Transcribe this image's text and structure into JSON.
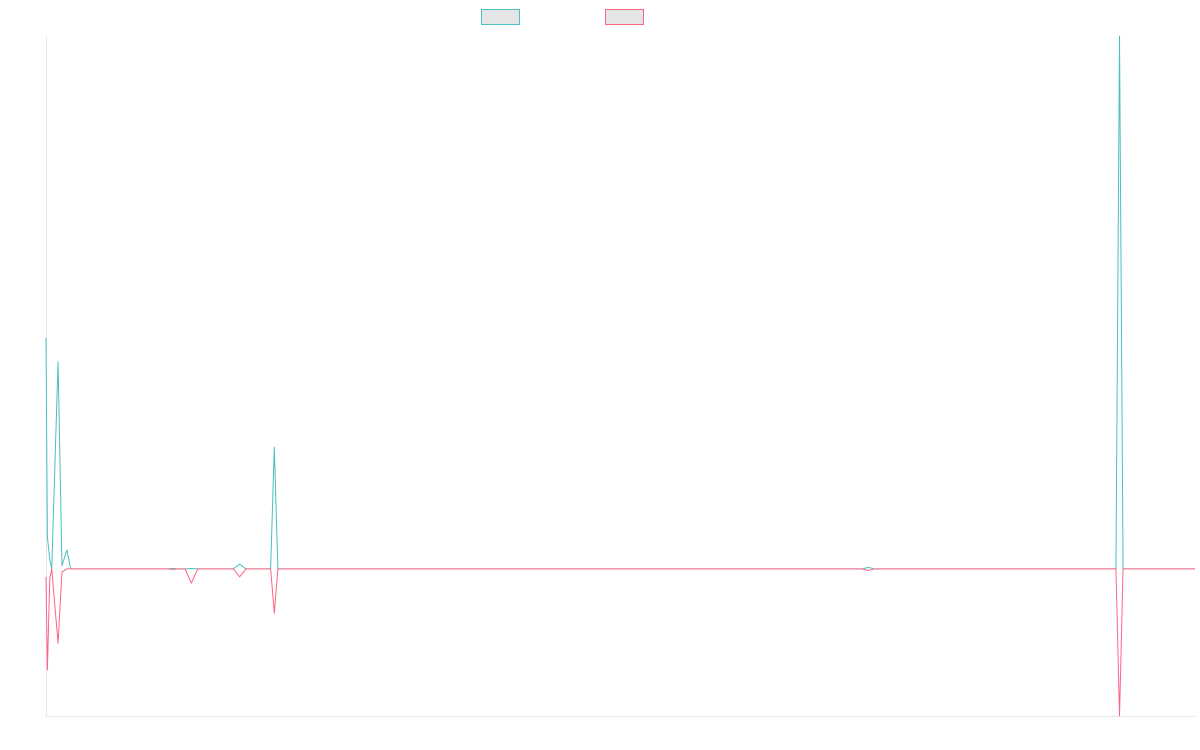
{
  "chart_data": {
    "type": "line",
    "title": "",
    "xlabel": "",
    "ylabel": "",
    "grid": false,
    "legend_position": "top-center",
    "ylim": [
      -93,
      337
    ],
    "series": [
      {
        "name": "",
        "color": "#4bc0c0",
        "points": [
          [
            0,
            146
          ],
          [
            1.2,
            20
          ],
          [
            3.3,
            6
          ],
          [
            5.0,
            0
          ],
          [
            10.5,
            131
          ],
          [
            13.9,
            2
          ],
          [
            18.2,
            12
          ],
          [
            21.5,
            0
          ],
          [
            105,
            0
          ],
          [
            110.5,
            0.3
          ],
          [
            116,
            0
          ],
          [
            121,
            0
          ],
          [
            126.5,
            0.3
          ],
          [
            132,
            0
          ],
          [
            163,
            0
          ],
          [
            168.5,
            3
          ],
          [
            174,
            0
          ],
          [
            195.5,
            0
          ],
          [
            198.7,
            77
          ],
          [
            201.8,
            0
          ],
          [
            710.3,
            0
          ],
          [
            715.7,
            1
          ],
          [
            721.0,
            0
          ],
          [
            931.2,
            0
          ],
          [
            934.3,
            337
          ],
          [
            937.4,
            0
          ],
          [
            1000,
            0
          ]
        ]
      },
      {
        "name": "",
        "color": "#ff6384",
        "points": [
          [
            0,
            -5
          ],
          [
            1.2,
            -64
          ],
          [
            3.3,
            -6
          ],
          [
            5.0,
            0
          ],
          [
            10.5,
            -47
          ],
          [
            13.9,
            -2
          ],
          [
            18.2,
            0
          ],
          [
            21.5,
            0
          ],
          [
            105,
            0
          ],
          [
            110.5,
            -0.3
          ],
          [
            116,
            0
          ],
          [
            121,
            0
          ],
          [
            126.5,
            -9
          ],
          [
            132,
            0
          ],
          [
            163,
            0
          ],
          [
            168.5,
            -5
          ],
          [
            174,
            0
          ],
          [
            195.5,
            0
          ],
          [
            198.7,
            -28
          ],
          [
            201.8,
            0
          ],
          [
            710.3,
            0
          ],
          [
            715.7,
            -1
          ],
          [
            721.0,
            0
          ],
          [
            931.2,
            0
          ],
          [
            934.3,
            -93
          ],
          [
            937.4,
            0
          ],
          [
            1000,
            0
          ]
        ]
      }
    ]
  }
}
